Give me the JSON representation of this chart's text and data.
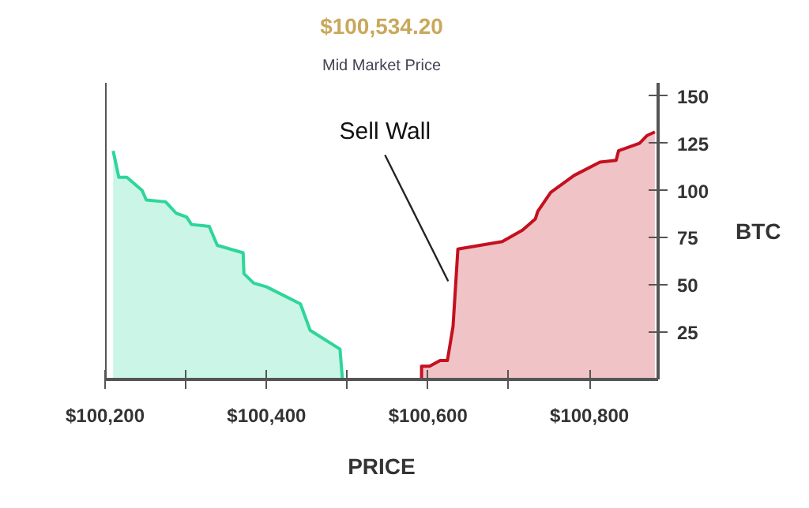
{
  "chart_data": {
    "type": "area",
    "title": "$100,534.20",
    "subtitle": "Mid Market Price",
    "xlabel": "PRICE",
    "ylabel": "BTC",
    "xlim": [
      100200,
      100885
    ],
    "ylim": [
      0,
      157
    ],
    "xticks": [
      {
        "value": 100200,
        "label": "$100,200"
      },
      {
        "value": 100300,
        "label": null
      },
      {
        "value": 100400,
        "label": "$100,400"
      },
      {
        "value": 100500,
        "label": null
      },
      {
        "value": 100600,
        "label": "$100,600"
      },
      {
        "value": 100700,
        "label": null
      },
      {
        "value": 100800,
        "label": "$100,800"
      }
    ],
    "yticks": [
      25,
      50,
      75,
      100,
      125,
      150
    ],
    "grid": false,
    "annotations": [
      {
        "text": "Sell Wall",
        "x": 100625,
        "y": 52
      }
    ],
    "series": [
      {
        "color": "#2ed69a",
        "x": [
          100210,
          100217,
          100227,
          100246,
          100251,
          100275,
          100288,
          100301,
          100307,
          100329,
          100339,
          100371,
          100372,
          100384,
          100400,
          100442,
          100454,
          100491,
          100494
        ],
        "values": [
          121,
          107,
          107,
          100,
          95,
          94,
          88,
          86,
          82,
          81,
          71,
          67,
          56,
          51,
          49,
          40,
          26,
          16,
          0
        ]
      },
      {
        "color": "#c4101f",
        "x": [
          100592,
          100592,
          100602,
          100615,
          100624,
          100631,
          100637,
          100692,
          100717,
          100733,
          100736,
          100752,
          100781,
          100813,
          100833,
          100836,
          100862,
          100871,
          100881
        ],
        "values": [
          0,
          7,
          7,
          10,
          10,
          28,
          69,
          73,
          79,
          85,
          89,
          99,
          108,
          115,
          116,
          121,
          125,
          129,
          131
        ]
      }
    ]
  }
}
